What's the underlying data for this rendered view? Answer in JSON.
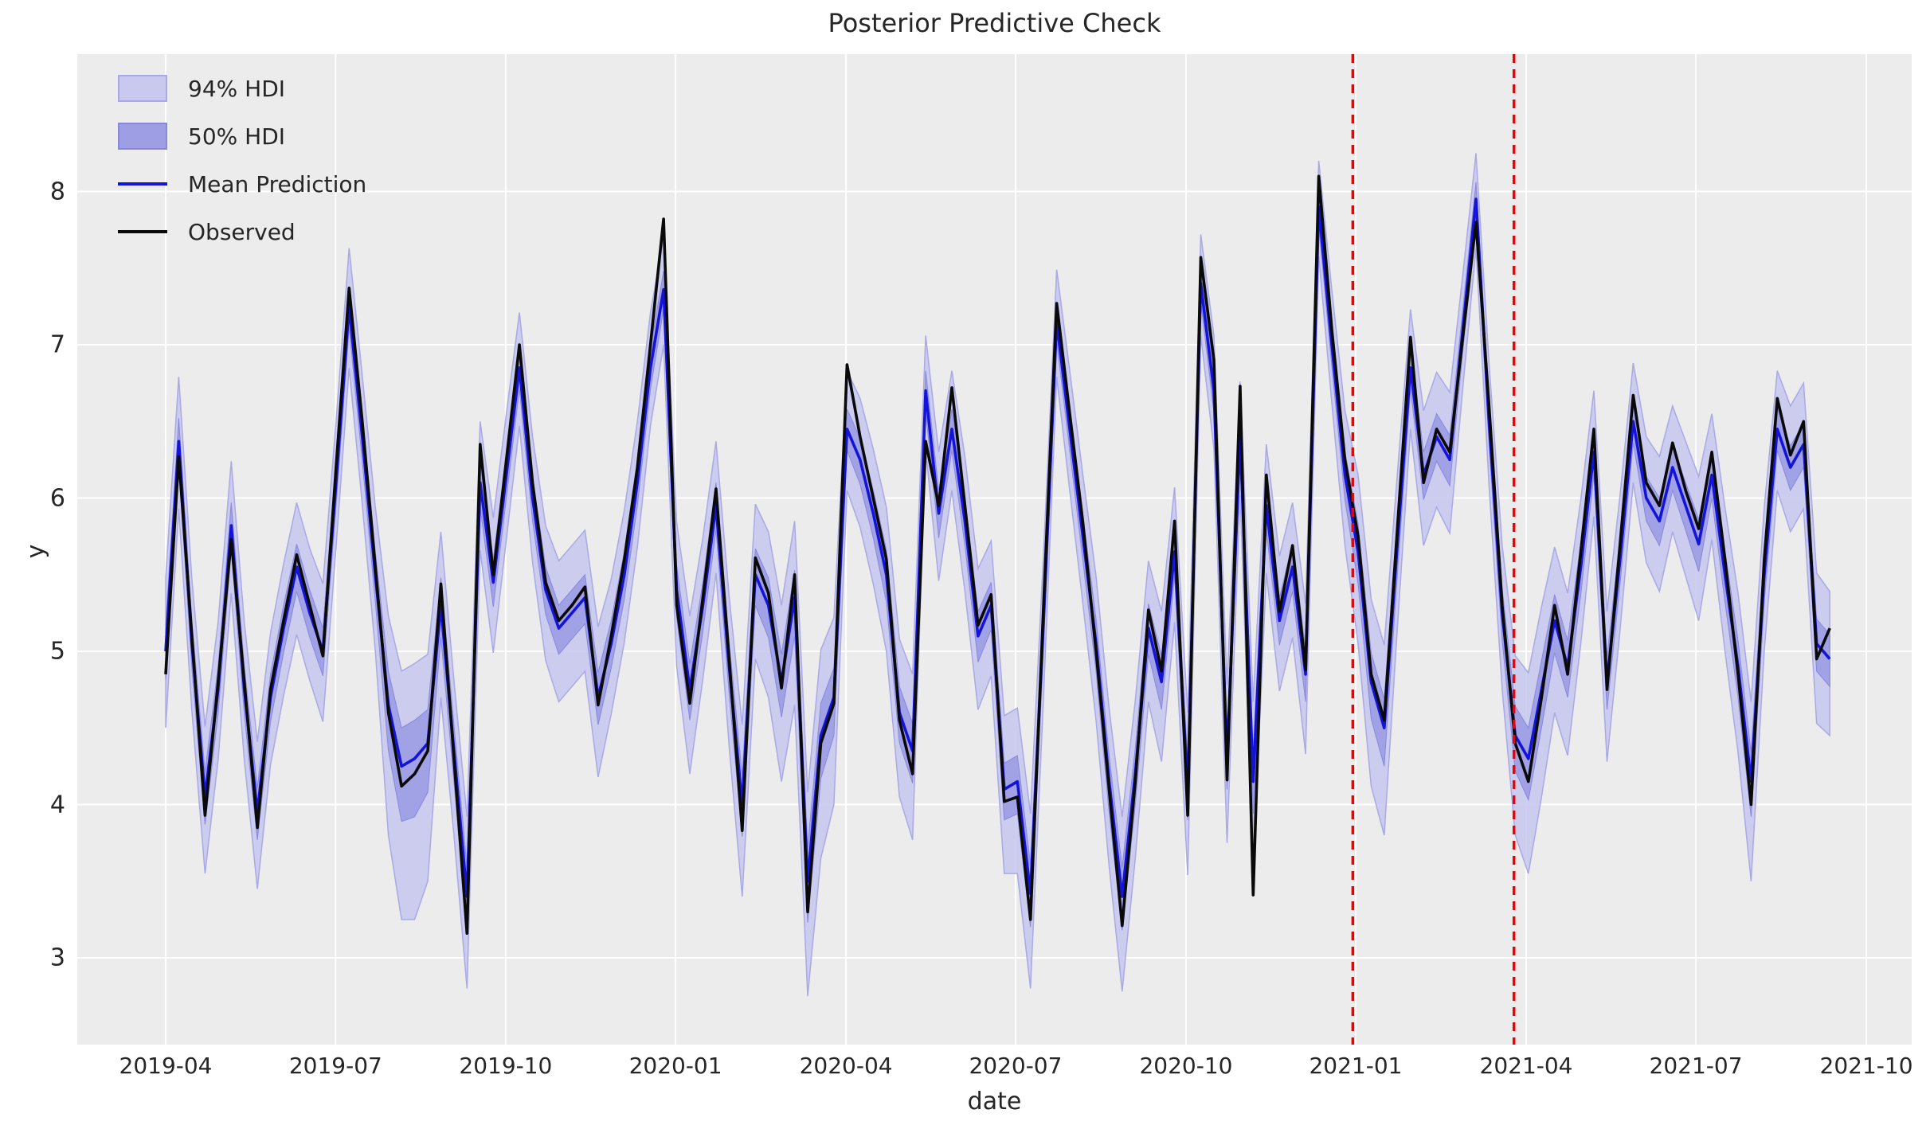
{
  "title": "Posterior Predictive Check",
  "xlabel": "date",
  "ylabel": "y",
  "legend": {
    "hdi94_label": "94% HDI",
    "hdi50_label": "50% HDI",
    "mean_label": "Mean Prediction",
    "observed_label": "Observed"
  },
  "colors": {
    "plot_bg": "#ececec",
    "grid": "#ffffff",
    "hdi94_fill": "#c9c9f0",
    "hdi94_edge": "#a9a9e6",
    "hdi50_fill": "#9e9ee4",
    "hdi50_edge": "#8888dd",
    "mean_line": "#1414d8",
    "observed_line": "#0a0a0a",
    "vline": "#f40000",
    "text": "#262626"
  },
  "chart_data": {
    "type": "line",
    "title": "Posterior Predictive Check",
    "xlabel": "date",
    "ylabel": "y",
    "grid": true,
    "legend_position": "upper-left",
    "x_unit": "weekly index",
    "x_tick_labels": [
      "2019-04",
      "2019-07",
      "2019-10",
      "2020-01",
      "2020-04",
      "2020-07",
      "2020-10",
      "2021-01",
      "2021-04",
      "2021-07",
      "2021-10"
    ],
    "x_tick_weeks": [
      0,
      12.97,
      25.95,
      38.91,
      51.92,
      64.86,
      77.87,
      90.82,
      103.83,
      116.78,
      129.79
    ],
    "xlim_weeks": [
      -6.75,
      133.25
    ],
    "y_ticks": [
      3,
      4,
      5,
      6,
      7,
      8
    ],
    "ylim": [
      2.43,
      8.9
    ],
    "vline_weeks": [
      90.6,
      102.9
    ],
    "vline_style": "red dashed",
    "series": [
      {
        "name": "Observed",
        "values": [
          4.85,
          6.27,
          5.1,
          3.93,
          4.8,
          5.73,
          4.8,
          3.85,
          4.75,
          5.2,
          5.63,
          5.3,
          4.97,
          6.2,
          7.37,
          6.5,
          5.55,
          4.6,
          4.12,
          4.2,
          4.35,
          5.44,
          4.3,
          3.16,
          6.35,
          5.5,
          6.25,
          7.0,
          6.1,
          5.45,
          5.2,
          5.3,
          5.42,
          4.65,
          5.1,
          5.6,
          6.2,
          7.0,
          7.82,
          5.3,
          4.66,
          5.35,
          6.06,
          4.95,
          3.83,
          5.61,
          5.38,
          4.76,
          5.5,
          3.3,
          4.4,
          4.66,
          6.87,
          6.4,
          6.0,
          5.6,
          4.55,
          4.2,
          6.37,
          5.95,
          6.72,
          5.95,
          5.17,
          5.37,
          4.02,
          4.05,
          3.25,
          5.3,
          7.27,
          6.55,
          5.84,
          5.0,
          4.1,
          3.21,
          4.15,
          5.27,
          4.87,
          5.85,
          3.93,
          7.57,
          6.9,
          4.16,
          6.73,
          3.41,
          6.15,
          5.26,
          5.69,
          4.88,
          8.1,
          7.1,
          6.25,
          5.75,
          4.85,
          4.55,
          5.8,
          7.05,
          6.1,
          6.45,
          6.3,
          7.05,
          7.8,
          6.6,
          5.3,
          4.4,
          4.15,
          4.7,
          5.3,
          4.85,
          5.65,
          6.45,
          4.75,
          5.7,
          6.67,
          6.1,
          5.95,
          6.36,
          6.05,
          5.8,
          6.3,
          5.6,
          4.85,
          4.0,
          5.6,
          6.65,
          6.28,
          6.5,
          4.95,
          5.15
        ]
      },
      {
        "name": "Mean Prediction",
        "values": [
          5.0,
          6.37,
          5.05,
          4.05,
          4.75,
          5.82,
          4.75,
          3.95,
          4.7,
          5.15,
          5.55,
          5.25,
          5.0,
          6.1,
          7.25,
          6.4,
          5.5,
          4.65,
          4.25,
          4.3,
          4.4,
          5.3,
          4.35,
          3.4,
          6.1,
          5.45,
          6.15,
          6.85,
          6.0,
          5.4,
          5.15,
          5.25,
          5.35,
          4.7,
          5.05,
          5.5,
          6.1,
          6.85,
          7.36,
          5.4,
          4.75,
          5.3,
          5.95,
          4.9,
          4.0,
          5.5,
          5.3,
          4.8,
          5.35,
          3.5,
          4.45,
          4.7,
          6.45,
          6.25,
          5.9,
          5.5,
          4.6,
          4.35,
          6.7,
          5.9,
          6.45,
          5.85,
          5.1,
          5.3,
          4.1,
          4.15,
          3.42,
          5.2,
          7.15,
          6.45,
          5.75,
          5.05,
          4.15,
          3.4,
          4.2,
          5.15,
          4.8,
          5.65,
          4.1,
          7.4,
          6.7,
          4.3,
          6.4,
          4.15,
          5.95,
          5.2,
          5.55,
          4.85,
          7.9,
          7.0,
          6.15,
          5.65,
          4.8,
          4.5,
          5.7,
          6.85,
          6.15,
          6.4,
          6.25,
          7.1,
          7.95,
          6.5,
          5.25,
          4.45,
          4.3,
          4.75,
          5.2,
          4.9,
          5.55,
          6.3,
          4.8,
          5.6,
          6.5,
          6.0,
          5.85,
          6.2,
          5.95,
          5.7,
          6.15,
          5.5,
          4.9,
          4.15,
          5.5,
          6.45,
          6.2,
          6.35,
          5.05,
          4.95
        ]
      }
    ],
    "hdi94_upper_offset": [
      0.48,
      0.42,
      0.42,
      0.46,
      0.44,
      0.42,
      0.44,
      0.46,
      0.42,
      0.42,
      0.42,
      0.42,
      0.44,
      0.4,
      0.38,
      0.4,
      0.44,
      0.58,
      0.62,
      0.62,
      0.58,
      0.48,
      0.46,
      0.52,
      0.4,
      0.42,
      0.4,
      0.36,
      0.4,
      0.42,
      0.44,
      0.44,
      0.44,
      0.46,
      0.42,
      0.42,
      0.4,
      0.36,
      0.34,
      0.44,
      0.48,
      0.44,
      0.42,
      0.46,
      0.52,
      0.46,
      0.48,
      0.5,
      0.5,
      0.58,
      0.56,
      0.52,
      0.38,
      0.4,
      0.42,
      0.44,
      0.48,
      0.5,
      0.36,
      0.4,
      0.38,
      0.42,
      0.44,
      0.42,
      0.48,
      0.48,
      0.52,
      0.44,
      0.34,
      0.38,
      0.4,
      0.44,
      0.48,
      0.52,
      0.48,
      0.44,
      0.46,
      0.42,
      0.5,
      0.32,
      0.36,
      0.48,
      0.36,
      0.52,
      0.4,
      0.42,
      0.42,
      0.46,
      0.3,
      0.36,
      0.42,
      0.5,
      0.54,
      0.54,
      0.46,
      0.38,
      0.42,
      0.42,
      0.44,
      0.36,
      0.3,
      0.38,
      0.44,
      0.52,
      0.56,
      0.54,
      0.48,
      0.48,
      0.44,
      0.4,
      0.46,
      0.42,
      0.38,
      0.4,
      0.42,
      0.4,
      0.42,
      0.44,
      0.4,
      0.44,
      0.48,
      0.52,
      0.44,
      0.38,
      0.4,
      0.4,
      0.46,
      0.44
    ],
    "hdi94_lower_offset": [
      0.5,
      0.44,
      0.44,
      0.5,
      0.46,
      0.44,
      0.46,
      0.5,
      0.44,
      0.44,
      0.44,
      0.44,
      0.46,
      0.42,
      0.4,
      0.44,
      0.5,
      0.85,
      1.0,
      1.05,
      0.9,
      0.6,
      0.55,
      0.6,
      0.44,
      0.46,
      0.42,
      0.38,
      0.42,
      0.46,
      0.48,
      0.48,
      0.48,
      0.52,
      0.46,
      0.44,
      0.42,
      0.38,
      0.36,
      0.5,
      0.55,
      0.48,
      0.44,
      0.52,
      0.6,
      0.55,
      0.6,
      0.65,
      0.7,
      0.75,
      0.8,
      0.7,
      0.4,
      0.44,
      0.46,
      0.5,
      0.55,
      0.58,
      0.38,
      0.44,
      0.4,
      0.46,
      0.48,
      0.46,
      0.55,
      0.6,
      0.62,
      0.5,
      0.36,
      0.4,
      0.44,
      0.5,
      0.55,
      0.62,
      0.55,
      0.48,
      0.52,
      0.46,
      0.56,
      0.34,
      0.38,
      0.55,
      0.38,
      0.6,
      0.44,
      0.46,
      0.46,
      0.52,
      0.32,
      0.38,
      0.46,
      0.6,
      0.68,
      0.7,
      0.55,
      0.4,
      0.46,
      0.46,
      0.48,
      0.38,
      0.32,
      0.42,
      0.5,
      0.65,
      0.75,
      0.7,
      0.6,
      0.58,
      0.5,
      0.42,
      0.52,
      0.46,
      0.4,
      0.42,
      0.46,
      0.42,
      0.46,
      0.5,
      0.42,
      0.5,
      0.56,
      0.65,
      0.5,
      0.4,
      0.42,
      0.42,
      0.52,
      0.5
    ],
    "hdi50_upper_offset": [
      0.17,
      0.15,
      0.15,
      0.16,
      0.15,
      0.15,
      0.15,
      0.16,
      0.15,
      0.15,
      0.15,
      0.15,
      0.15,
      0.14,
      0.13,
      0.14,
      0.15,
      0.22,
      0.25,
      0.25,
      0.22,
      0.18,
      0.17,
      0.19,
      0.14,
      0.15,
      0.14,
      0.13,
      0.14,
      0.15,
      0.15,
      0.15,
      0.15,
      0.16,
      0.15,
      0.15,
      0.14,
      0.13,
      0.12,
      0.16,
      0.17,
      0.15,
      0.15,
      0.16,
      0.19,
      0.17,
      0.18,
      0.18,
      0.18,
      0.22,
      0.21,
      0.19,
      0.13,
      0.14,
      0.15,
      0.16,
      0.17,
      0.18,
      0.13,
      0.15,
      0.13,
      0.15,
      0.16,
      0.15,
      0.17,
      0.17,
      0.19,
      0.16,
      0.12,
      0.14,
      0.14,
      0.16,
      0.17,
      0.19,
      0.17,
      0.16,
      0.17,
      0.15,
      0.18,
      0.11,
      0.13,
      0.17,
      0.13,
      0.19,
      0.14,
      0.15,
      0.15,
      0.16,
      0.11,
      0.13,
      0.15,
      0.18,
      0.19,
      0.19,
      0.16,
      0.13,
      0.15,
      0.15,
      0.16,
      0.13,
      0.11,
      0.14,
      0.16,
      0.19,
      0.2,
      0.19,
      0.17,
      0.17,
      0.16,
      0.14,
      0.16,
      0.15,
      0.14,
      0.14,
      0.15,
      0.14,
      0.15,
      0.16,
      0.14,
      0.16,
      0.17,
      0.19,
      0.16,
      0.14,
      0.14,
      0.14,
      0.16,
      0.16
    ],
    "hdi50_lower_offset": [
      0.18,
      0.16,
      0.16,
      0.18,
      0.16,
      0.16,
      0.16,
      0.18,
      0.16,
      0.16,
      0.16,
      0.16,
      0.16,
      0.15,
      0.14,
      0.16,
      0.18,
      0.3,
      0.36,
      0.38,
      0.32,
      0.21,
      0.2,
      0.21,
      0.16,
      0.16,
      0.15,
      0.14,
      0.15,
      0.16,
      0.17,
      0.17,
      0.17,
      0.18,
      0.16,
      0.16,
      0.15,
      0.14,
      0.13,
      0.18,
      0.2,
      0.17,
      0.16,
      0.18,
      0.21,
      0.2,
      0.21,
      0.23,
      0.25,
      0.27,
      0.28,
      0.25,
      0.14,
      0.16,
      0.16,
      0.18,
      0.2,
      0.21,
      0.14,
      0.16,
      0.14,
      0.16,
      0.17,
      0.16,
      0.2,
      0.21,
      0.22,
      0.18,
      0.13,
      0.14,
      0.16,
      0.18,
      0.2,
      0.22,
      0.2,
      0.17,
      0.18,
      0.16,
      0.2,
      0.12,
      0.14,
      0.2,
      0.14,
      0.21,
      0.16,
      0.16,
      0.16,
      0.18,
      0.12,
      0.14,
      0.16,
      0.21,
      0.24,
      0.25,
      0.2,
      0.14,
      0.16,
      0.16,
      0.17,
      0.14,
      0.12,
      0.15,
      0.18,
      0.23,
      0.27,
      0.25,
      0.21,
      0.2,
      0.18,
      0.15,
      0.18,
      0.16,
      0.14,
      0.15,
      0.16,
      0.15,
      0.16,
      0.18,
      0.15,
      0.18,
      0.2,
      0.23,
      0.18,
      0.14,
      0.15,
      0.15,
      0.18,
      0.18
    ]
  }
}
